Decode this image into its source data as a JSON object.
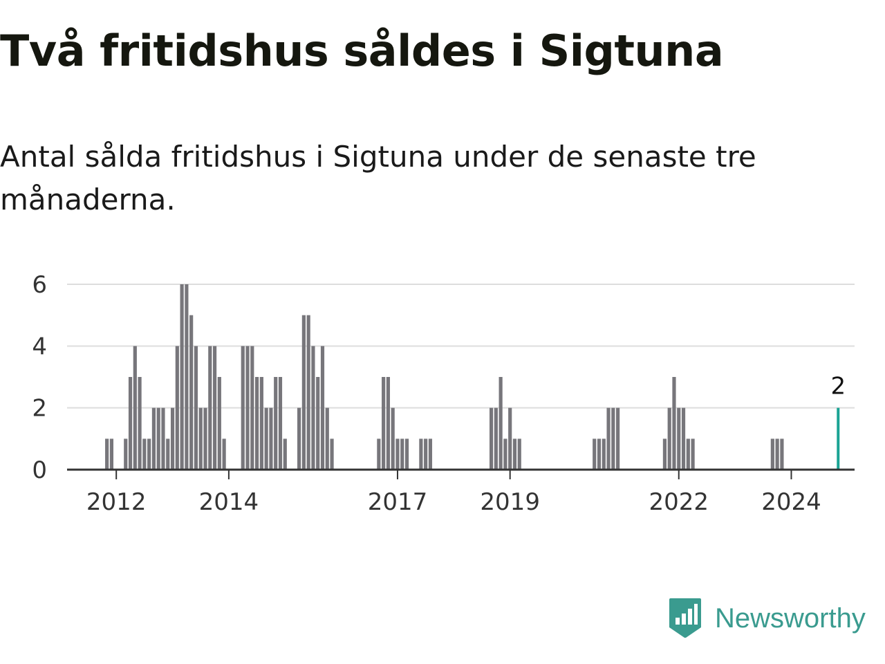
{
  "title": "Två fritidshus såldes i Sigtuna",
  "subtitle": "Antal sålda fritidshus i Sigtuna under de senaste tre månaderna.",
  "brand": {
    "name": "Newsworthy",
    "icon": "newsworthy-logo-icon",
    "color": "#3a9b8f"
  },
  "colors": {
    "bar": "#77767b",
    "highlight": "#1aa394",
    "grid": "#dddddd",
    "axis": "#333333",
    "text": "#333333"
  },
  "chart_data": {
    "type": "bar",
    "title": "Två fritidshus såldes i Sigtuna",
    "xlabel": "",
    "ylabel": "",
    "ylim": [
      0,
      6
    ],
    "yticks": [
      0,
      2,
      4,
      6
    ],
    "x_start": "2011-03",
    "x_end": "2025-02",
    "xticks": [
      "2012",
      "2014",
      "2017",
      "2019",
      "2022",
      "2024"
    ],
    "grid": true,
    "highlight_label": "2",
    "series": [
      {
        "name": "Sålda fritidshus",
        "categories": [
          "2011-11",
          "2011-12",
          "2012-03",
          "2012-04",
          "2012-05",
          "2012-06",
          "2012-07",
          "2012-08",
          "2012-09",
          "2012-10",
          "2012-11",
          "2012-12",
          "2013-01",
          "2013-02",
          "2013-03",
          "2013-04",
          "2013-05",
          "2013-06",
          "2013-07",
          "2013-08",
          "2013-09",
          "2013-10",
          "2013-11",
          "2013-12",
          "2014-04",
          "2014-05",
          "2014-06",
          "2014-07",
          "2014-08",
          "2014-09",
          "2014-10",
          "2014-11",
          "2014-12",
          "2015-01",
          "2015-04",
          "2015-05",
          "2015-06",
          "2015-07",
          "2015-08",
          "2015-09",
          "2015-10",
          "2015-11",
          "2016-09",
          "2016-10",
          "2016-11",
          "2016-12",
          "2017-01",
          "2017-02",
          "2017-03",
          "2017-06",
          "2017-07",
          "2017-08",
          "2018-09",
          "2018-10",
          "2018-11",
          "2018-12",
          "2019-01",
          "2019-02",
          "2019-03",
          "2020-07",
          "2020-08",
          "2020-09",
          "2020-10",
          "2020-11",
          "2020-12",
          "2021-10",
          "2021-11",
          "2021-12",
          "2022-01",
          "2022-02",
          "2022-03",
          "2022-04",
          "2023-09",
          "2023-10",
          "2023-11"
        ],
        "values": [
          1,
          1,
          1,
          3,
          4,
          3,
          1,
          1,
          2,
          2,
          2,
          1,
          2,
          4,
          6,
          6,
          5,
          4,
          2,
          2,
          4,
          4,
          3,
          1,
          4,
          4,
          4,
          3,
          3,
          2,
          2,
          3,
          3,
          1,
          2,
          5,
          5,
          4,
          3,
          4,
          2,
          1,
          1,
          3,
          3,
          2,
          1,
          1,
          1,
          1,
          1,
          1,
          2,
          2,
          3,
          1,
          2,
          1,
          1,
          1,
          1,
          1,
          2,
          2,
          2,
          1,
          2,
          3,
          2,
          2,
          1,
          1,
          1,
          1,
          1
        ]
      },
      {
        "name": "Senaste tre månaderna",
        "categories": [
          "2024-11"
        ],
        "values": [
          2
        ]
      }
    ]
  }
}
